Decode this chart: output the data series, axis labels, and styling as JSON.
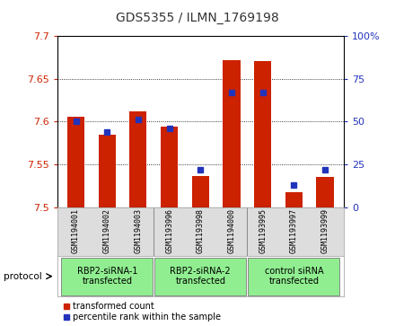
{
  "title": "GDS5355 / ILMN_1769198",
  "samples": [
    "GSM1194001",
    "GSM1194002",
    "GSM1194003",
    "GSM1193996",
    "GSM1193998",
    "GSM1194000",
    "GSM1193995",
    "GSM1193997",
    "GSM1193999"
  ],
  "red_values": [
    7.605,
    7.584,
    7.612,
    7.594,
    7.536,
    7.672,
    7.671,
    7.517,
    7.535
  ],
  "blue_values": [
    50,
    44,
    51,
    46,
    22,
    67,
    67,
    13,
    22
  ],
  "ylim": [
    7.5,
    7.7
  ],
  "y_ticks": [
    7.5,
    7.55,
    7.6,
    7.65,
    7.7
  ],
  "right_ylim": [
    0,
    100
  ],
  "right_yticks": [
    0,
    25,
    50,
    75,
    100
  ],
  "right_yticklabels": [
    "0",
    "25",
    "50",
    "75",
    "100%"
  ],
  "group_defs": [
    [
      0,
      2,
      "RBP2-siRNA-1\ntransfected"
    ],
    [
      3,
      5,
      "RBP2-siRNA-2\ntransfected"
    ],
    [
      6,
      8,
      "control siRNA\ntransfected"
    ]
  ],
  "protocol_label": "protocol",
  "bar_width": 0.55,
  "red_color": "#cc2200",
  "blue_color": "#2233bb",
  "legend_red": "transformed count",
  "legend_blue": "percentile rank within the sample",
  "title_color": "#333333",
  "left_tick_color": "#cc2200",
  "right_tick_color": "#2233bb",
  "plot_bg": "#ffffff",
  "sample_box_color": "#dddddd",
  "group_box_color": "#90ee90"
}
